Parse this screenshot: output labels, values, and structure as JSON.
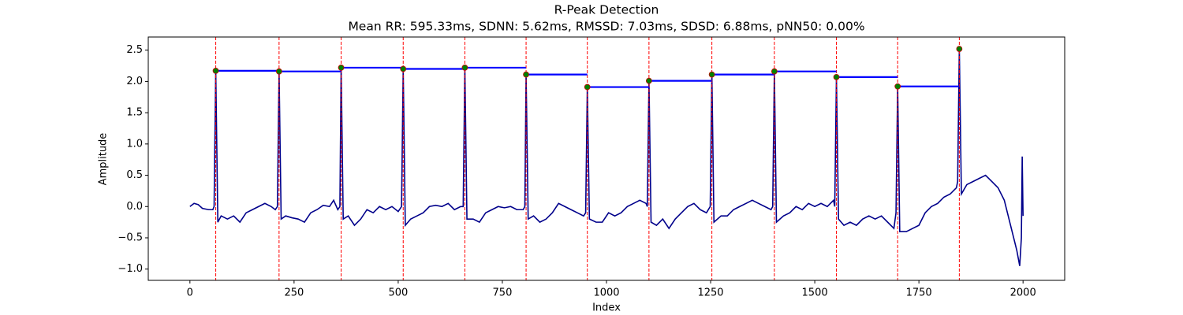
{
  "chart_data": {
    "type": "line",
    "title": "R-Peak Detection",
    "subtitle": "Mean RR: 595.33ms, SDNN: 5.62ms, RMSSD: 7.03ms, SDSD: 6.88ms, pNN50: 0.00%",
    "x_label": "Index",
    "y_label": "Amplitude",
    "xlim": [
      -100,
      2100
    ],
    "ylim": [
      -1.18,
      2.71
    ],
    "xticks": [
      0,
      250,
      500,
      750,
      1000,
      1250,
      1500,
      1750,
      2000
    ],
    "yticks": [
      {
        "value": -1,
        "label": "−1.0"
      },
      {
        "value": -0.5,
        "label": "−0.5"
      },
      {
        "value": 0,
        "label": "0.0"
      },
      0.5,
      {
        "value": 1,
        "label": "1.0"
      },
      1.5,
      {
        "value": 2,
        "label": "2.0"
      },
      2.5
    ],
    "x": [
      0,
      10,
      20,
      30,
      45,
      55,
      58,
      62,
      67,
      75,
      90,
      105,
      120,
      135,
      150,
      165,
      180,
      195,
      205,
      210,
      214,
      219,
      230,
      245,
      260,
      275,
      290,
      305,
      320,
      335,
      345,
      355,
      360,
      363,
      368,
      380,
      395,
      410,
      425,
      440,
      455,
      470,
      485,
      500,
      508,
      512,
      517,
      530,
      545,
      560,
      575,
      590,
      605,
      620,
      635,
      650,
      656,
      660,
      665,
      680,
      695,
      710,
      725,
      740,
      755,
      770,
      785,
      800,
      804,
      807,
      812,
      825,
      840,
      855,
      870,
      885,
      900,
      915,
      930,
      945,
      950,
      954,
      959,
      975,
      990,
      1005,
      1020,
      1035,
      1050,
      1065,
      1080,
      1095,
      1098,
      1102,
      1107,
      1120,
      1135,
      1150,
      1165,
      1180,
      1195,
      1210,
      1225,
      1240,
      1249,
      1253,
      1258,
      1275,
      1290,
      1305,
      1320,
      1335,
      1350,
      1365,
      1380,
      1395,
      1399,
      1403,
      1408,
      1425,
      1440,
      1455,
      1470,
      1485,
      1500,
      1515,
      1530,
      1545,
      1548,
      1552,
      1557,
      1570,
      1585,
      1600,
      1615,
      1630,
      1645,
      1660,
      1675,
      1690,
      1695,
      1699,
      1704,
      1720,
      1735,
      1750,
      1765,
      1780,
      1795,
      1810,
      1825,
      1840,
      1843,
      1847,
      1852,
      1865,
      1880,
      1895,
      1910,
      1925,
      1940,
      1955,
      1970,
      1985,
      1992,
      1996,
      1998,
      2000
    ],
    "series": [
      {
        "color": "#00008b",
        "values": [
          0.0,
          0.05,
          0.03,
          -0.03,
          -0.05,
          -0.05,
          0.0,
          2.17,
          -0.25,
          -0.15,
          -0.2,
          -0.15,
          -0.25,
          -0.1,
          -0.05,
          0.0,
          0.05,
          0.0,
          -0.05,
          0.0,
          2.16,
          -0.2,
          -0.15,
          -0.18,
          -0.2,
          -0.25,
          -0.1,
          -0.05,
          0.02,
          0.0,
          0.1,
          -0.05,
          0.0,
          2.22,
          -0.2,
          -0.15,
          -0.3,
          -0.2,
          -0.05,
          -0.1,
          0.0,
          -0.05,
          0.0,
          -0.08,
          0.0,
          2.2,
          -0.3,
          -0.2,
          -0.15,
          -0.1,
          0.0,
          0.02,
          0.0,
          0.05,
          -0.05,
          0.0,
          0.0,
          2.22,
          -0.2,
          -0.2,
          -0.25,
          -0.1,
          -0.05,
          0.0,
          -0.02,
          0.0,
          -0.05,
          -0.05,
          0.0,
          2.11,
          -0.2,
          -0.15,
          -0.25,
          -0.2,
          -0.1,
          0.05,
          0.0,
          -0.05,
          -0.1,
          -0.15,
          -0.1,
          1.91,
          -0.2,
          -0.25,
          -0.25,
          -0.1,
          -0.15,
          -0.1,
          0.0,
          0.05,
          0.1,
          0.05,
          0.0,
          2.01,
          -0.25,
          -0.3,
          -0.2,
          -0.35,
          -0.2,
          -0.1,
          0.0,
          0.05,
          -0.05,
          -0.1,
          0.0,
          2.11,
          -0.25,
          -0.15,
          -0.15,
          -0.05,
          0.0,
          0.05,
          0.1,
          0.05,
          0.0,
          -0.05,
          0.0,
          2.16,
          -0.25,
          -0.15,
          -0.1,
          0.0,
          -0.05,
          0.05,
          0.0,
          0.05,
          0.0,
          0.1,
          0.0,
          2.07,
          -0.2,
          -0.3,
          -0.25,
          -0.3,
          -0.2,
          -0.15,
          -0.2,
          -0.15,
          -0.25,
          -0.35,
          -0.1,
          1.92,
          -0.4,
          -0.4,
          -0.35,
          -0.3,
          -0.1,
          0.0,
          0.05,
          0.15,
          0.2,
          0.3,
          0.4,
          2.52,
          0.2,
          0.35,
          0.4,
          0.45,
          0.5,
          0.4,
          0.3,
          0.1,
          -0.3,
          -0.7,
          -0.95,
          -0.5,
          0.8,
          -0.15
        ]
      }
    ],
    "peaks": {
      "x": [
        62,
        214,
        363,
        512,
        660,
        807,
        954,
        1102,
        1253,
        1403,
        1552,
        1699,
        1847
      ],
      "values": [
        2.17,
        2.16,
        2.22,
        2.2,
        2.22,
        2.11,
        1.91,
        2.01,
        2.11,
        2.16,
        2.07,
        1.92,
        2.52
      ],
      "color": "green",
      "edge_color": "#cc0000",
      "line_color": "red",
      "interval_color": "blue"
    }
  }
}
